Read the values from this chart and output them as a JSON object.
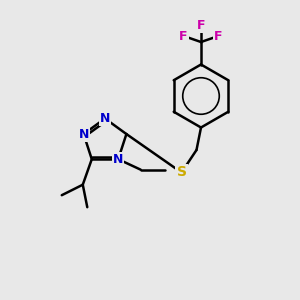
{
  "background_color": "#e8e8e8",
  "atom_colors": {
    "N": "#0000cc",
    "S": "#ccaa00",
    "F": "#cc00aa"
  },
  "bond_color": "#000000",
  "bond_width": 1.8,
  "figsize": [
    3.0,
    3.0
  ],
  "dpi": 100
}
